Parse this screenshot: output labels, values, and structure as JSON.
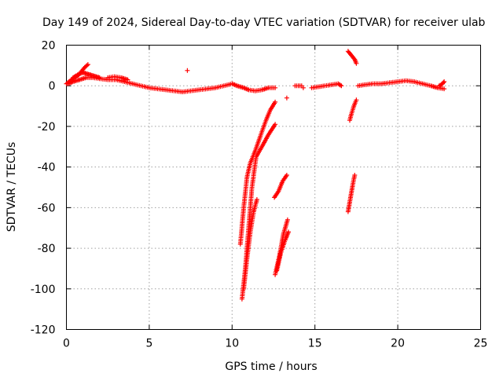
{
  "chart_data": {
    "type": "scatter",
    "title": "Day 149 of 2024, Sidereal Day-to-day VTEC variation (SDTVAR) for receiver ulab",
    "xlabel": "GPS time / hours",
    "ylabel": "SDTVAR / TECUs",
    "xlim": [
      0,
      25
    ],
    "ylim": [
      -120,
      20
    ],
    "xticks": [
      0,
      5,
      10,
      15,
      20,
      25
    ],
    "yticks": [
      20,
      0,
      -20,
      -40,
      -60,
      -80,
      -100,
      -120
    ],
    "grid": true,
    "marker": "+",
    "color": "#ff0000",
    "series": [
      {
        "name": "baseline",
        "segments": [
          [
            [
              0.0,
              1
            ],
            [
              0.15,
              2
            ],
            [
              0.3,
              3
            ],
            [
              0.5,
              4
            ],
            [
              0.7,
              5
            ],
            [
              0.9,
              7
            ],
            [
              1.1,
              9
            ],
            [
              1.3,
              10.5
            ]
          ],
          [
            [
              0.4,
              4
            ],
            [
              0.6,
              5
            ],
            [
              0.8,
              6
            ],
            [
              1.0,
              6.5
            ],
            [
              1.2,
              6
            ],
            [
              1.4,
              5.5
            ],
            [
              1.6,
              5
            ],
            [
              1.8,
              4.5
            ],
            [
              2.0,
              4
            ]
          ],
          [
            [
              0.1,
              1
            ],
            [
              0.4,
              2
            ],
            [
              0.8,
              3
            ],
            [
              1.2,
              4
            ],
            [
              1.6,
              4
            ],
            [
              2.0,
              3.5
            ],
            [
              2.5,
              3
            ],
            [
              3.0,
              3
            ],
            [
              3.5,
              2
            ],
            [
              4.0,
              1
            ],
            [
              4.5,
              0
            ],
            [
              5.0,
              -1
            ],
            [
              5.5,
              -1.5
            ],
            [
              6.0,
              -2
            ],
            [
              6.5,
              -2.5
            ],
            [
              7.0,
              -3
            ],
            [
              7.5,
              -2.5
            ],
            [
              8.0,
              -2
            ],
            [
              8.5,
              -1.5
            ],
            [
              9.0,
              -1
            ],
            [
              9.5,
              0
            ],
            [
              10.0,
              1
            ],
            [
              10.3,
              0
            ],
            [
              10.7,
              -1
            ],
            [
              11.0,
              -2
            ],
            [
              11.4,
              -2.5
            ],
            [
              11.8,
              -2
            ],
            [
              12.2,
              -1
            ],
            [
              12.6,
              -1
            ]
          ],
          [
            [
              2.5,
              4
            ],
            [
              2.9,
              4.5
            ],
            [
              3.3,
              4
            ],
            [
              3.7,
              3
            ]
          ],
          [
            [
              13.8,
              0
            ],
            [
              14.2,
              0
            ]
          ],
          [
            [
              14.8,
              -1
            ],
            [
              15.2,
              -0.5
            ],
            [
              15.6,
              0
            ],
            [
              16.0,
              0.5
            ],
            [
              16.4,
              1
            ],
            [
              16.6,
              0
            ]
          ],
          [
            [
              17.6,
              0
            ],
            [
              18.0,
              0.5
            ],
            [
              18.5,
              1
            ],
            [
              19.0,
              1
            ],
            [
              19.5,
              1.5
            ],
            [
              20.0,
              2
            ],
            [
              20.5,
              2.5
            ],
            [
              21.0,
              2
            ],
            [
              21.5,
              1
            ],
            [
              22.0,
              0
            ],
            [
              22.4,
              -1
            ],
            [
              22.8,
              -1.5
            ]
          ],
          [
            [
              22.5,
              0
            ],
            [
              22.7,
              1
            ],
            [
              22.8,
              2
            ]
          ]
        ]
      },
      {
        "name": "isolated",
        "segments": [
          [
            [
              7.3,
              7.5
            ]
          ],
          [
            [
              13.3,
              -6
            ]
          ],
          [
            [
              14.3,
              -1
            ]
          ]
        ]
      },
      {
        "name": "storm_arcs",
        "segments": [
          [
            [
              10.6,
              -105
            ],
            [
              10.8,
              -90
            ],
            [
              11.0,
              -70
            ],
            [
              11.2,
              -50
            ],
            [
              11.45,
              -35
            ],
            [
              11.8,
              -30
            ],
            [
              12.2,
              -24
            ],
            [
              12.6,
              -19
            ]
          ],
          [
            [
              10.5,
              -78
            ],
            [
              10.7,
              -60
            ],
            [
              10.9,
              -45
            ],
            [
              11.1,
              -38
            ],
            [
              11.4,
              -32
            ],
            [
              11.7,
              -25
            ],
            [
              12.0,
              -18
            ],
            [
              12.3,
              -12
            ],
            [
              12.6,
              -8
            ]
          ],
          [
            [
              10.7,
              -100
            ],
            [
              10.9,
              -85
            ],
            [
              11.1,
              -72
            ],
            [
              11.3,
              -62
            ],
            [
              11.5,
              -56
            ]
          ],
          [
            [
              12.55,
              -55
            ],
            [
              12.8,
              -52
            ],
            [
              13.05,
              -47
            ],
            [
              13.3,
              -44
            ]
          ],
          [
            [
              12.6,
              -93
            ],
            [
              12.85,
              -84
            ],
            [
              13.1,
              -73
            ],
            [
              13.35,
              -66
            ]
          ],
          [
            [
              12.7,
              -91
            ],
            [
              12.95,
              -82
            ],
            [
              13.2,
              -76
            ],
            [
              13.4,
              -72
            ]
          ],
          [
            [
              17.0,
              17
            ],
            [
              17.2,
              15
            ],
            [
              17.4,
              13
            ],
            [
              17.5,
              11
            ]
          ],
          [
            [
              17.1,
              -17
            ],
            [
              17.2,
              -14
            ],
            [
              17.35,
              -10
            ],
            [
              17.5,
              -7
            ]
          ],
          [
            [
              17.0,
              -62
            ],
            [
              17.15,
              -55
            ],
            [
              17.3,
              -48
            ],
            [
              17.4,
              -44
            ]
          ]
        ]
      }
    ]
  }
}
